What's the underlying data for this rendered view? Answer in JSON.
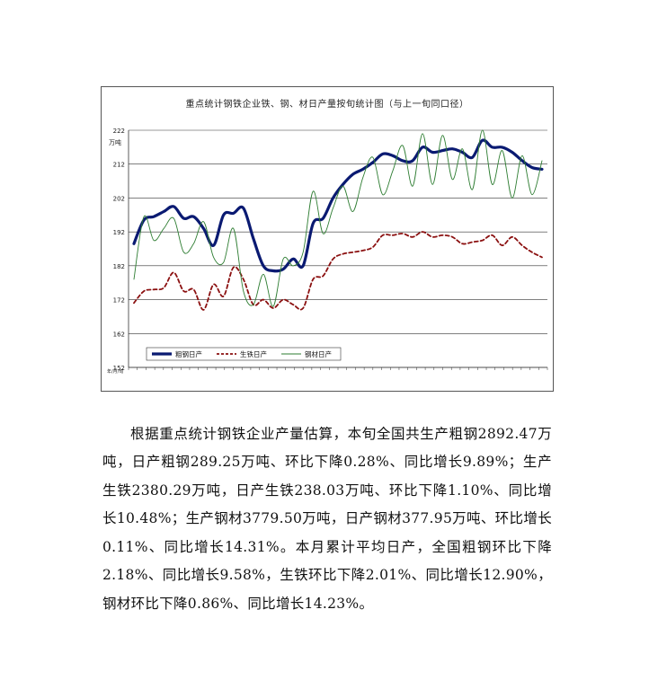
{
  "chart_data": {
    "type": "line",
    "title": "重点统计钢铁企业铁、钢、材日产量按旬统计图（与上一旬同口径）",
    "ylabel": "万吨",
    "xlabel": "年/月/旬",
    "ylim": [
      152,
      222
    ],
    "yticks": [
      "152",
      "162",
      "172",
      "182",
      "192",
      "202",
      "212",
      "222"
    ],
    "x_tick_count": 48,
    "grid": true,
    "legend": "bottom-left",
    "series": [
      {
        "name": "粗钢日产",
        "color": "#0a1a72",
        "style": "solid-thick",
        "values": [
          188.5,
          195.5,
          196.5,
          198,
          199.5,
          196,
          196.5,
          193,
          188,
          197,
          197.5,
          199,
          190,
          182,
          180.5,
          181,
          184,
          182,
          194.5,
          196,
          202,
          206,
          209,
          210.5,
          212.5,
          215,
          214.5,
          213,
          213,
          217,
          215.5,
          216,
          216.5,
          215.5,
          214,
          219,
          217,
          217,
          215.5,
          213,
          211,
          210.5
        ]
      },
      {
        "name": "生铁日产",
        "color": "#8b1010",
        "style": "dashed",
        "values": [
          171,
          174.5,
          175,
          175.5,
          180,
          174.5,
          175,
          169,
          176.5,
          173,
          181.5,
          178,
          170.5,
          172,
          169.5,
          172,
          170.5,
          169.5,
          178,
          179,
          184,
          185.5,
          186,
          186.5,
          187.5,
          191,
          191,
          191.5,
          190.5,
          192,
          190.5,
          191,
          190.5,
          188.5,
          189,
          189.5,
          191,
          188,
          190.5,
          188,
          186,
          184.5
        ]
      },
      {
        "name": "钢材日产",
        "color": "#2e7d32",
        "style": "solid-thin",
        "values": [
          178,
          196.5,
          189.5,
          193,
          196,
          186,
          188.5,
          195,
          184.5,
          183,
          193,
          174.5,
          170.5,
          179.5,
          170,
          184,
          182,
          186,
          204,
          191.5,
          199,
          205.5,
          198,
          208,
          214,
          203,
          210,
          217.5,
          205.5,
          221,
          206,
          220.5,
          207.5,
          216.5,
          204.5,
          222,
          206,
          216,
          202,
          214.5,
          203,
          213
        ]
      }
    ]
  },
  "article": {
    "paragraph": "根据重点统计钢铁企业产量估算，本旬全国共生产粗钢2892.47万吨，日产粗钢289.25万吨、环比下降0.28%、同比增长9.89%；生产生铁2380.29万吨，日产生铁238.03万吨、环比下降1.10%、同比增长10.48%；生产钢材3779.50万吨，日产钢材377.95万吨、环比增长0.11%、同比增长14.31%。本月累计平均日产，全国粗钢环比下降2.18%、同比增长9.58%，生铁环比下降2.01%、同比增长12.90%，钢材环比下降0.86%、同比增长14.23%。"
  }
}
